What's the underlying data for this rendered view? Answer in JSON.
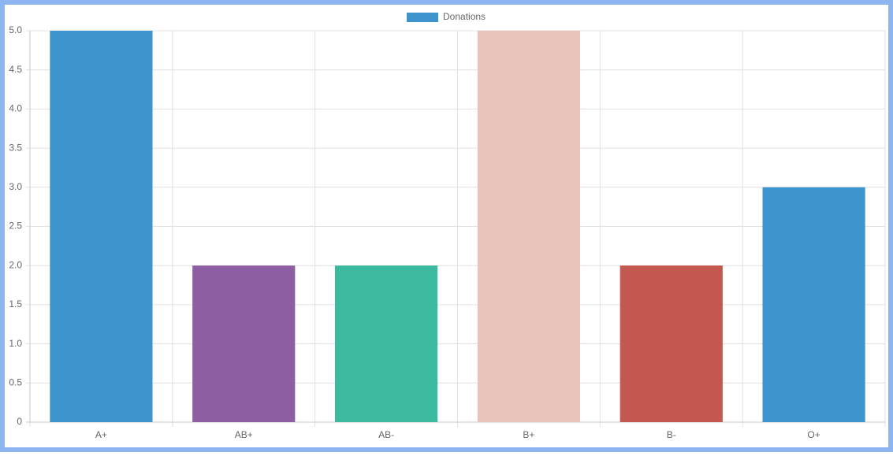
{
  "chart_data": {
    "type": "bar",
    "categories": [
      "A+",
      "AB+",
      "AB-",
      "B+",
      "B-",
      "O+"
    ],
    "series": [
      {
        "name": "Donations",
        "color": "#3e95cd",
        "colors": [
          "#3e95cd",
          "#8e5ea2",
          "#3cba9f",
          "#e8c3b9",
          "#c45850",
          "#3e95cd"
        ],
        "values": [
          5,
          2,
          2,
          5,
          2,
          3
        ]
      }
    ],
    "ylim": [
      0,
      5
    ],
    "yticks": [
      0,
      0.5,
      {
        "value": 1,
        "label": "1.0"
      },
      1.5,
      {
        "value": 2,
        "label": "2.0"
      },
      2.5,
      {
        "value": 3,
        "label": "3.0"
      },
      3.5,
      {
        "value": 4,
        "label": "4.0"
      },
      4.5,
      {
        "value": 5,
        "label": "5.0"
      }
    ],
    "grid": true,
    "legend": "top"
  }
}
